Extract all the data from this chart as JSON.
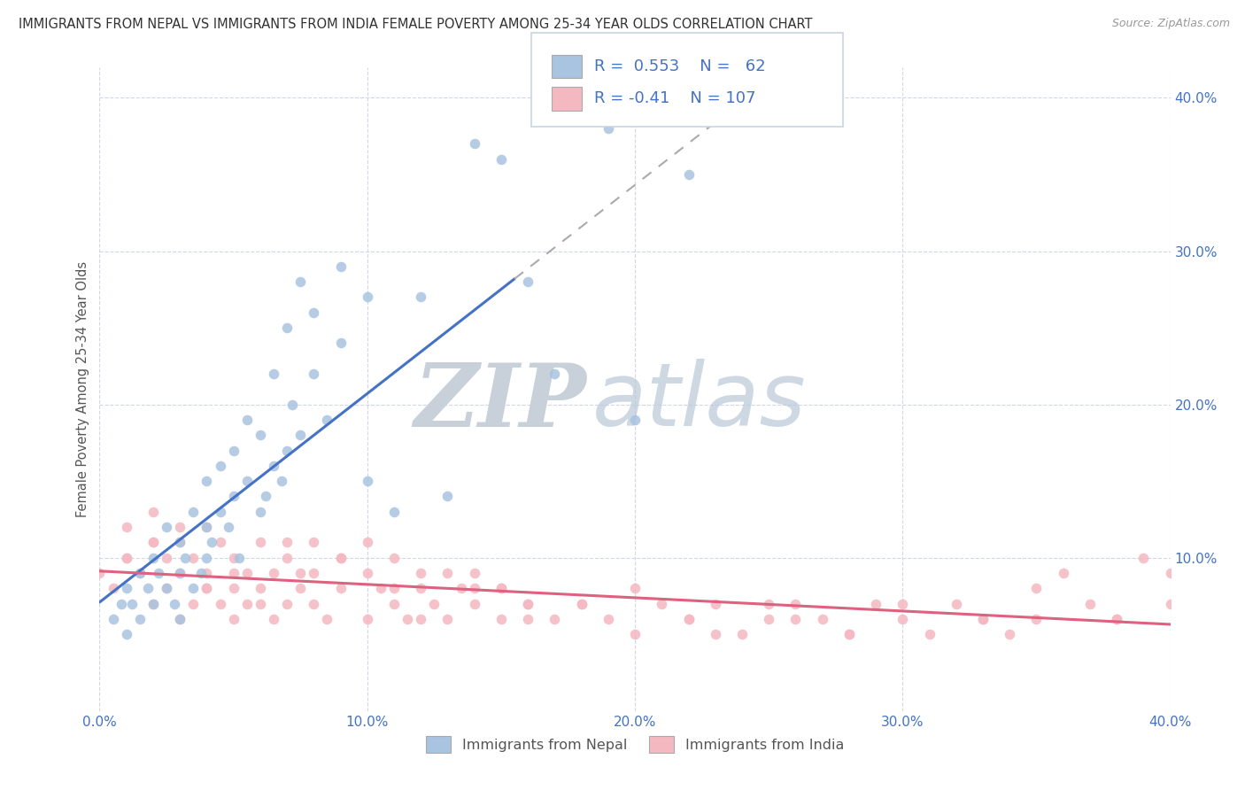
{
  "title": "IMMIGRANTS FROM NEPAL VS IMMIGRANTS FROM INDIA FEMALE POVERTY AMONG 25-34 YEAR OLDS CORRELATION CHART",
  "source": "Source: ZipAtlas.com",
  "ylabel": "Female Poverty Among 25-34 Year Olds",
  "xlim": [
    0.0,
    0.4
  ],
  "ylim": [
    0.0,
    0.42
  ],
  "xtick_labels": [
    "0.0%",
    "10.0%",
    "20.0%",
    "30.0%",
    "40.0%"
  ],
  "xtick_vals": [
    0.0,
    0.1,
    0.2,
    0.3,
    0.4
  ],
  "ytick_labels": [
    "10.0%",
    "20.0%",
    "30.0%",
    "40.0%"
  ],
  "ytick_vals": [
    0.1,
    0.2,
    0.3,
    0.4
  ],
  "nepal_R": 0.553,
  "nepal_N": 62,
  "india_R": -0.41,
  "india_N": 107,
  "nepal_color": "#a8c4e0",
  "india_color": "#f4b8c1",
  "nepal_line_color": "#4472c4",
  "india_line_color": "#e06080",
  "grid_color": "#d0d8e8",
  "text_color": "#4472c4",
  "title_color": "#444444",
  "nepal_x": [
    0.005,
    0.008,
    0.01,
    0.01,
    0.012,
    0.015,
    0.015,
    0.018,
    0.02,
    0.02,
    0.022,
    0.025,
    0.025,
    0.028,
    0.03,
    0.03,
    0.03,
    0.032,
    0.035,
    0.035,
    0.038,
    0.04,
    0.04,
    0.04,
    0.042,
    0.045,
    0.045,
    0.048,
    0.05,
    0.05,
    0.052,
    0.055,
    0.055,
    0.06,
    0.06,
    0.062,
    0.065,
    0.065,
    0.068,
    0.07,
    0.07,
    0.072,
    0.075,
    0.075,
    0.08,
    0.08,
    0.085,
    0.09,
    0.09,
    0.1,
    0.1,
    0.11,
    0.12,
    0.13,
    0.14,
    0.15,
    0.16,
    0.17,
    0.19,
    0.2,
    0.22,
    0.25
  ],
  "nepal_y": [
    0.06,
    0.07,
    0.05,
    0.08,
    0.07,
    0.06,
    0.09,
    0.08,
    0.07,
    0.1,
    0.09,
    0.08,
    0.12,
    0.07,
    0.06,
    0.09,
    0.11,
    0.1,
    0.08,
    0.13,
    0.09,
    0.1,
    0.12,
    0.15,
    0.11,
    0.13,
    0.16,
    0.12,
    0.14,
    0.17,
    0.1,
    0.15,
    0.19,
    0.13,
    0.18,
    0.14,
    0.16,
    0.22,
    0.15,
    0.17,
    0.25,
    0.2,
    0.18,
    0.28,
    0.22,
    0.26,
    0.19,
    0.24,
    0.29,
    0.27,
    0.15,
    0.13,
    0.27,
    0.14,
    0.37,
    0.36,
    0.28,
    0.22,
    0.38,
    0.19,
    0.35,
    0.4
  ],
  "india_x": [
    0.0,
    0.005,
    0.01,
    0.01,
    0.015,
    0.02,
    0.02,
    0.02,
    0.025,
    0.025,
    0.03,
    0.03,
    0.03,
    0.035,
    0.035,
    0.04,
    0.04,
    0.04,
    0.045,
    0.045,
    0.05,
    0.05,
    0.05,
    0.055,
    0.055,
    0.06,
    0.06,
    0.065,
    0.065,
    0.07,
    0.07,
    0.075,
    0.075,
    0.08,
    0.08,
    0.085,
    0.09,
    0.09,
    0.1,
    0.1,
    0.1,
    0.105,
    0.11,
    0.11,
    0.115,
    0.12,
    0.12,
    0.125,
    0.13,
    0.135,
    0.14,
    0.14,
    0.15,
    0.15,
    0.16,
    0.17,
    0.18,
    0.19,
    0.2,
    0.21,
    0.22,
    0.23,
    0.24,
    0.25,
    0.26,
    0.27,
    0.28,
    0.29,
    0.3,
    0.31,
    0.32,
    0.33,
    0.34,
    0.35,
    0.36,
    0.37,
    0.38,
    0.39,
    0.4,
    0.4,
    0.38,
    0.35,
    0.33,
    0.3,
    0.28,
    0.26,
    0.25,
    0.23,
    0.22,
    0.2,
    0.18,
    0.16,
    0.15,
    0.13,
    0.11,
    0.09,
    0.07,
    0.05,
    0.03,
    0.01,
    0.02,
    0.04,
    0.06,
    0.08,
    0.12,
    0.14,
    0.16
  ],
  "india_y": [
    0.09,
    0.08,
    0.1,
    0.12,
    0.09,
    0.07,
    0.11,
    0.13,
    0.08,
    0.1,
    0.06,
    0.09,
    0.11,
    0.07,
    0.1,
    0.08,
    0.09,
    0.12,
    0.07,
    0.11,
    0.06,
    0.08,
    0.1,
    0.09,
    0.07,
    0.08,
    0.11,
    0.06,
    0.09,
    0.07,
    0.1,
    0.08,
    0.09,
    0.07,
    0.11,
    0.06,
    0.08,
    0.1,
    0.06,
    0.09,
    0.11,
    0.08,
    0.07,
    0.1,
    0.06,
    0.08,
    0.09,
    0.07,
    0.06,
    0.08,
    0.07,
    0.09,
    0.06,
    0.08,
    0.07,
    0.06,
    0.07,
    0.06,
    0.08,
    0.07,
    0.06,
    0.07,
    0.05,
    0.06,
    0.07,
    0.06,
    0.05,
    0.07,
    0.06,
    0.05,
    0.07,
    0.06,
    0.05,
    0.06,
    0.09,
    0.07,
    0.06,
    0.1,
    0.09,
    0.07,
    0.06,
    0.08,
    0.06,
    0.07,
    0.05,
    0.06,
    0.07,
    0.05,
    0.06,
    0.05,
    0.07,
    0.06,
    0.08,
    0.09,
    0.08,
    0.1,
    0.11,
    0.09,
    0.12,
    0.1,
    0.11,
    0.08,
    0.07,
    0.09,
    0.06,
    0.08,
    0.07
  ],
  "bottom_legend": [
    "Immigrants from Nepal",
    "Immigrants from India"
  ]
}
